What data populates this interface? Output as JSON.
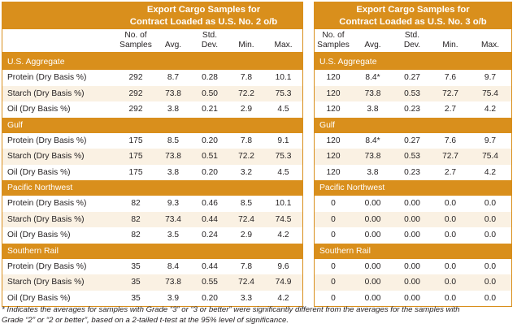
{
  "colors": {
    "accent": "#d98f1c",
    "alt_row": "#faf1e3"
  },
  "tables": [
    {
      "title_line1": "Export Cargo Samples for",
      "title_line2": "Contract Loaded as U.S. No. 2 o/b",
      "columns": [
        "No. of\nSamples",
        "Avg.",
        "Std.\nDev.",
        "Min.",
        "Max."
      ],
      "col_lines": [
        [
          "No. of",
          "Samples"
        ],
        [
          "",
          "Avg."
        ],
        [
          "Std.",
          "Dev."
        ],
        [
          "",
          "Min."
        ],
        [
          "",
          "Max."
        ]
      ],
      "sections": [
        {
          "name": "U.S. Aggregate",
          "rows": [
            {
              "label": "Protein (Dry Basis %)",
              "values": [
                "292",
                "8.7",
                "0.28",
                "7.8",
                "10.1"
              ]
            },
            {
              "label": "Starch (Dry Basis %)",
              "values": [
                "292",
                "73.8",
                "0.50",
                "72.2",
                "75.3"
              ]
            },
            {
              "label": "Oil (Dry Basis %)",
              "values": [
                "292",
                "3.8",
                "0.21",
                "2.9",
                "4.5"
              ]
            }
          ]
        },
        {
          "name": "Gulf",
          "rows": [
            {
              "label": "Protein (Dry Basis %)",
              "values": [
                "175",
                "8.5",
                "0.20",
                "7.8",
                "9.1"
              ]
            },
            {
              "label": "Starch (Dry Basis %)",
              "values": [
                "175",
                "73.8",
                "0.51",
                "72.2",
                "75.3"
              ]
            },
            {
              "label": "Oil (Dry Basis %)",
              "values": [
                "175",
                "3.8",
                "0.20",
                "3.2",
                "4.5"
              ]
            }
          ]
        },
        {
          "name": "Pacific Northwest",
          "rows": [
            {
              "label": "Protein (Dry Basis %)",
              "values": [
                "82",
                "9.3",
                "0.46",
                "8.5",
                "10.1"
              ]
            },
            {
              "label": "Starch (Dry Basis %)",
              "values": [
                "82",
                "73.4",
                "0.44",
                "72.4",
                "74.5"
              ]
            },
            {
              "label": "Oil (Dry Basis %)",
              "values": [
                "82",
                "3.5",
                "0.24",
                "2.9",
                "4.2"
              ]
            }
          ]
        },
        {
          "name": "Southern Rail",
          "rows": [
            {
              "label": "Protein (Dry Basis %)",
              "values": [
                "35",
                "8.4",
                "0.44",
                "7.8",
                "9.6"
              ]
            },
            {
              "label": "Starch (Dry Basis %)",
              "values": [
                "35",
                "73.8",
                "0.55",
                "72.4",
                "74.9"
              ]
            },
            {
              "label": "Oil (Dry Basis %)",
              "values": [
                "35",
                "3.9",
                "0.20",
                "3.3",
                "4.2"
              ]
            }
          ]
        }
      ]
    },
    {
      "title_line1": "Export Cargo Samples for",
      "title_line2": "Contract Loaded as U.S. No. 3 o/b",
      "col_lines": [
        [
          "No. of",
          "Samples"
        ],
        [
          "",
          "Avg."
        ],
        [
          "Std.",
          "Dev."
        ],
        [
          "",
          "Min."
        ],
        [
          "",
          "Max."
        ]
      ],
      "sections": [
        {
          "name": "U.S. Aggregate",
          "rows": [
            {
              "values": [
                "120",
                "8.4*",
                "0.27",
                "7.6",
                "9.7"
              ]
            },
            {
              "values": [
                "120",
                "73.8",
                "0.53",
                "72.7",
                "75.4"
              ]
            },
            {
              "values": [
                "120",
                "3.8",
                "0.23",
                "2.7",
                "4.2"
              ]
            }
          ]
        },
        {
          "name": "Gulf",
          "rows": [
            {
              "values": [
                "120",
                "8.4*",
                "0.27",
                "7.6",
                "9.7"
              ]
            },
            {
              "values": [
                "120",
                "73.8",
                "0.53",
                "72.7",
                "75.4"
              ]
            },
            {
              "values": [
                "120",
                "3.8",
                "0.23",
                "2.7",
                "4.2"
              ]
            }
          ]
        },
        {
          "name": "Pacific Northwest",
          "rows": [
            {
              "values": [
                "0",
                "0.00",
                "0.00",
                "0.0",
                "0.0"
              ]
            },
            {
              "values": [
                "0",
                "0.00",
                "0.00",
                "0.0",
                "0.0"
              ]
            },
            {
              "values": [
                "0",
                "0.00",
                "0.00",
                "0.0",
                "0.0"
              ]
            }
          ]
        },
        {
          "name": "Southern Rail",
          "rows": [
            {
              "values": [
                "0",
                "0.00",
                "0.00",
                "0.0",
                "0.0"
              ]
            },
            {
              "values": [
                "0",
                "0.00",
                "0.00",
                "0.0",
                "0.0"
              ]
            },
            {
              "values": [
                "0",
                "0.00",
                "0.00",
                "0.0",
                "0.0"
              ]
            }
          ]
        }
      ]
    }
  ],
  "footnote_line1": "* Indicates the averages for samples with Grade “3” or “3 or better” were significantly different from the averages for the samples with",
  "footnote_line2": "Grade “2” or “2 or better”, based on a 2-tailed t-test at the 95% level of significance."
}
